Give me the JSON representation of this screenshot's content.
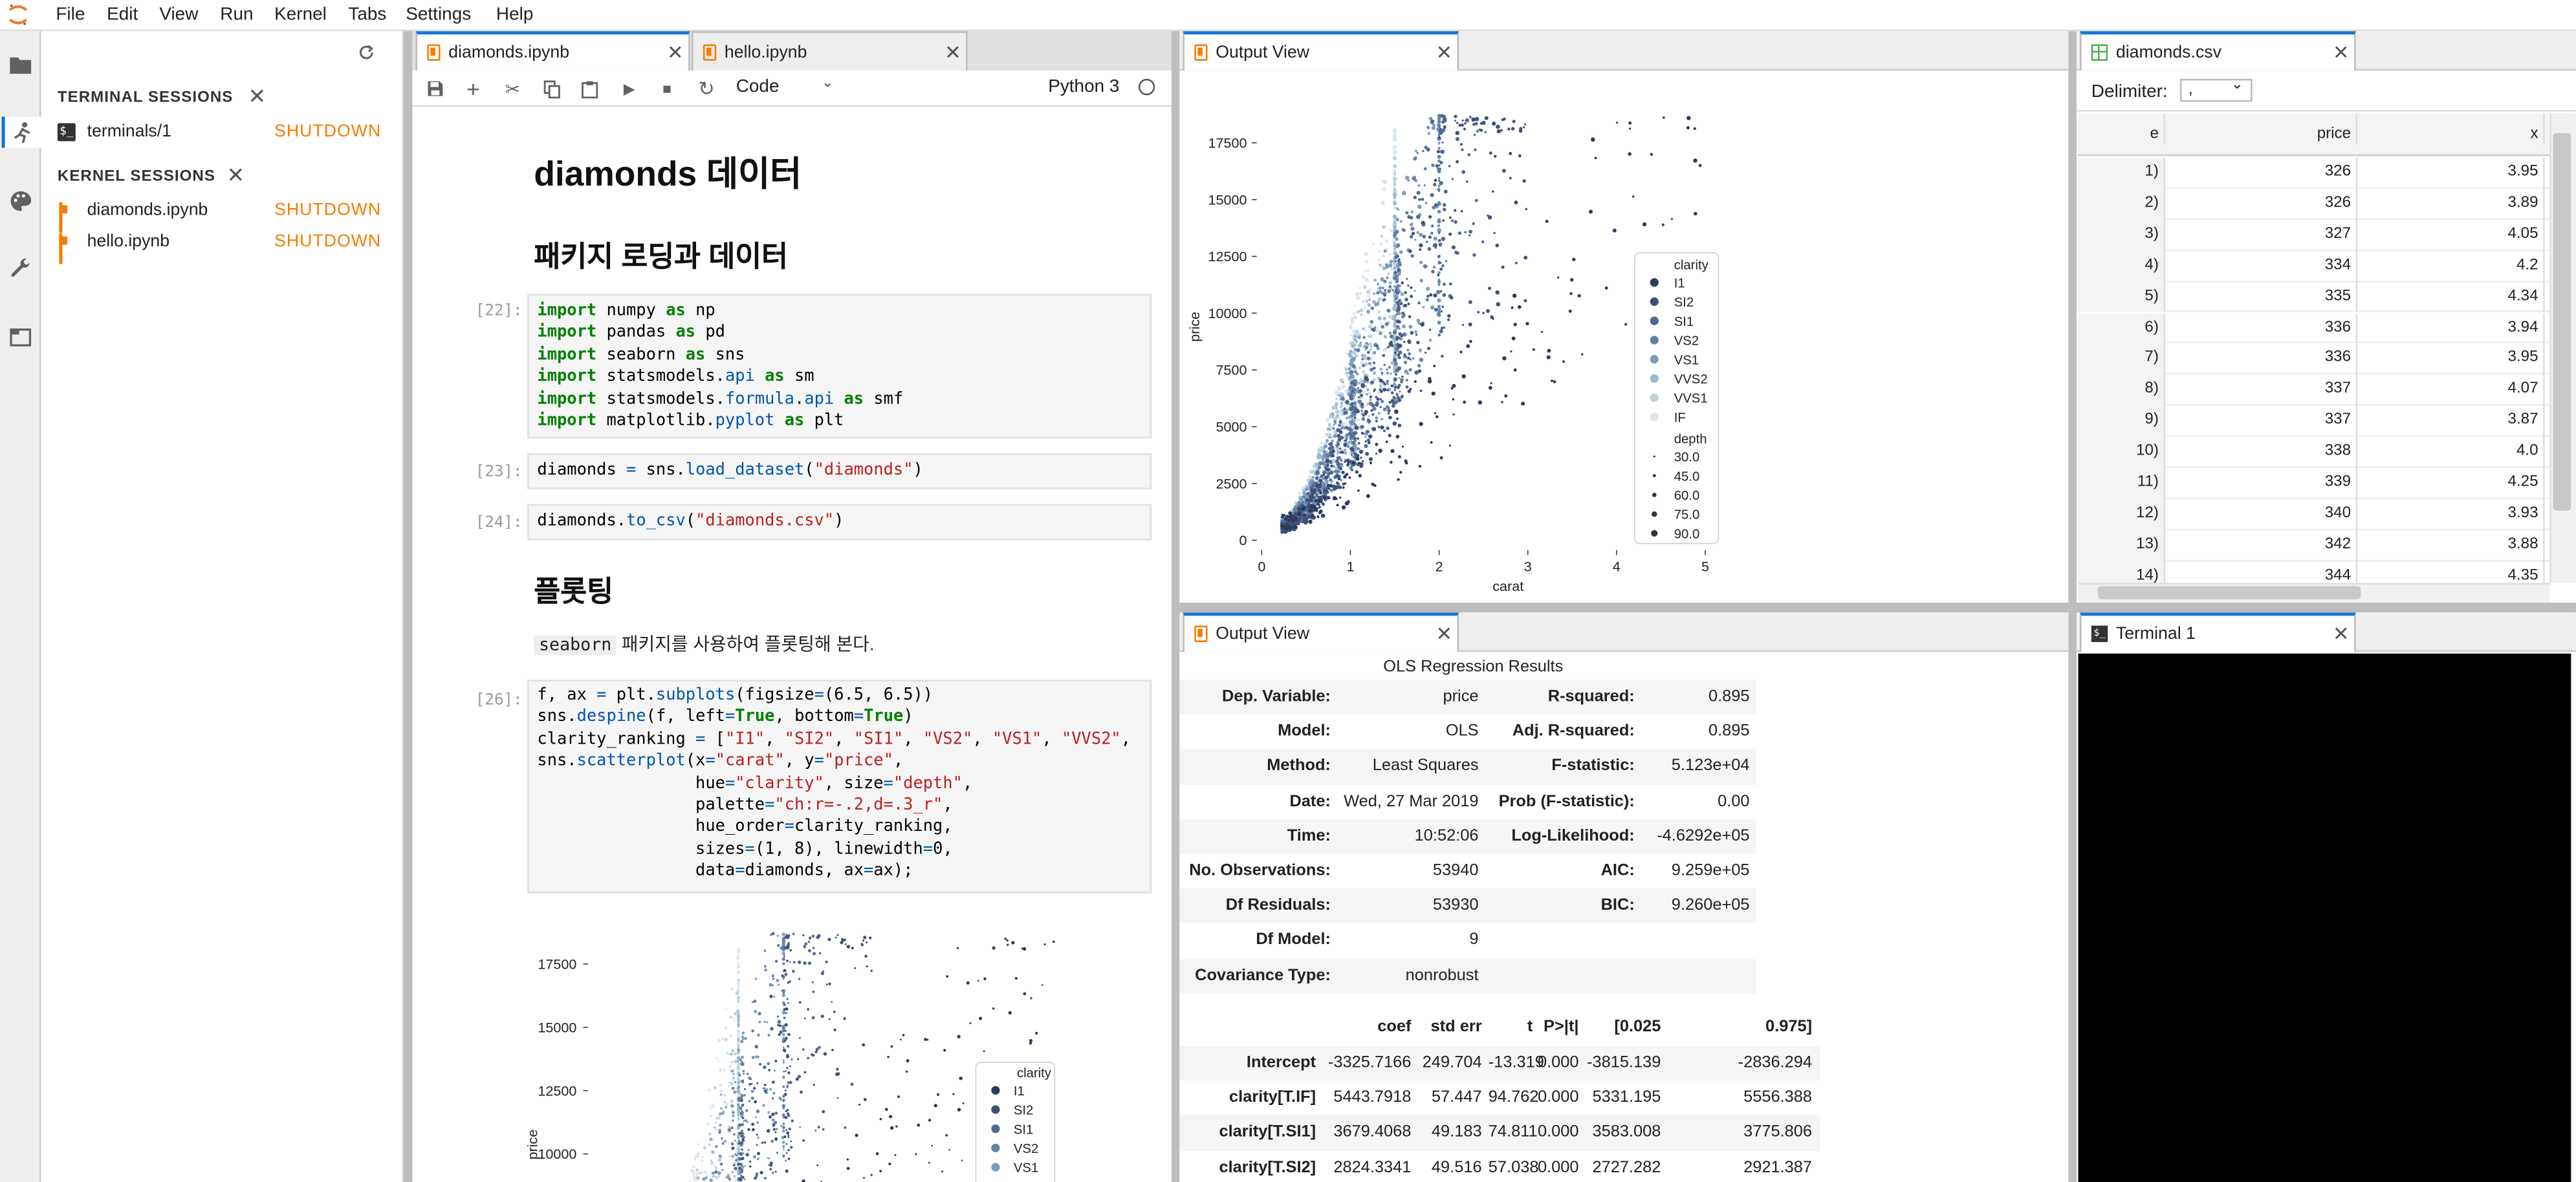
{
  "menu": {
    "items": [
      "File",
      "Edit",
      "View",
      "Run",
      "Kernel",
      "Tabs",
      "Settings",
      "Help"
    ]
  },
  "sidebar": {
    "terminal_title": "TERMINAL SESSIONS",
    "terminals": [
      {
        "name": "terminals/1",
        "action": "SHUTDOWN"
      }
    ],
    "kernel_title": "KERNEL SESSIONS",
    "kernels": [
      {
        "name": "diamonds.ipynb",
        "action": "SHUTDOWN"
      },
      {
        "name": "hello.ipynb",
        "action": "SHUTDOWN"
      }
    ]
  },
  "notebook": {
    "tabs": [
      "diamonds.ipynb",
      "hello.ipynb"
    ],
    "cell_type": "Code",
    "kernel": "Python 3",
    "h1": "diamonds 데이터",
    "h2a": "패키지 로딩과 데이터",
    "p22": "[22]:",
    "p23": "[23]:",
    "p24": "[24]:",
    "p26": "[26]:",
    "h2b": "플롯팅",
    "md_code": "seaborn",
    "md_text": "패키지를 사용하여 플롯팅해 본다."
  },
  "output_view": {
    "title": "Output View"
  },
  "ols": {
    "title": "OLS Regression Results",
    "rows": [
      [
        "Dep. Variable:",
        "price",
        "R-squared:",
        "0.895"
      ],
      [
        "Model:",
        "OLS",
        "Adj. R-squared:",
        "0.895"
      ],
      [
        "Method:",
        "Least Squares",
        "F-statistic:",
        "5.123e+04"
      ],
      [
        "Date:",
        "Wed, 27 Mar 2019",
        "Prob (F-statistic):",
        "0.00"
      ],
      [
        "Time:",
        "10:52:06",
        "Log-Likelihood:",
        "-4.6292e+05"
      ],
      [
        "No. Observations:",
        "53940",
        "AIC:",
        "9.259e+05"
      ],
      [
        "Df Residuals:",
        "53930",
        "BIC:",
        "9.260e+05"
      ],
      [
        "Df Model:",
        "9",
        "",
        ""
      ],
      [
        "Covariance Type:",
        "nonrobust",
        "",
        ""
      ]
    ],
    "coef_header": [
      "",
      "coef",
      "std err",
      "t",
      "P>|t|",
      "[0.025",
      "0.975]"
    ],
    "coef_rows": [
      [
        "Intercept",
        "-3325.7166",
        "249.704",
        "-13.319",
        "0.000",
        "-3815.139",
        "-2836.294"
      ],
      [
        "clarity[T.IF]",
        "5443.7918",
        "57.447",
        "94.762",
        "0.000",
        "5331.195",
        "5556.388"
      ],
      [
        "clarity[T.SI1]",
        "3679.4068",
        "49.183",
        "74.811",
        "0.000",
        "3583.008",
        "3775.806"
      ],
      [
        "clarity[T.SI2]",
        "2824.3341",
        "49.516",
        "57.038",
        "0.000",
        "2727.282",
        "2921.387"
      ]
    ]
  },
  "csv": {
    "tab": "diamonds.csv",
    "delimiter_label": "Delimiter:",
    "delimiter_value": ",",
    "headers": [
      "e",
      "price",
      "x"
    ],
    "rows": [
      [
        "1)",
        "326",
        "3.95"
      ],
      [
        "2)",
        "326",
        "3.89"
      ],
      [
        "3)",
        "327",
        "4.05"
      ],
      [
        "4)",
        "334",
        "4.2"
      ],
      [
        "5)",
        "335",
        "4.34"
      ],
      [
        "6)",
        "336",
        "3.94"
      ],
      [
        "7)",
        "336",
        "3.95"
      ],
      [
        "8)",
        "337",
        "4.07"
      ],
      [
        "9)",
        "337",
        "3.87"
      ],
      [
        "10)",
        "338",
        "4.0"
      ],
      [
        "11)",
        "339",
        "4.25"
      ],
      [
        "12)",
        "340",
        "3.93"
      ],
      [
        "13)",
        "342",
        "3.88"
      ],
      [
        "14)",
        "344",
        "4.35"
      ]
    ]
  },
  "terminal": {
    "tab": "Terminal 1"
  },
  "chart_data": [
    {
      "type": "scatter",
      "title": "",
      "xlabel": "carat",
      "ylabel": "price",
      "xlim": [
        0,
        5
      ],
      "ylim": [
        0,
        18800
      ],
      "xticks": [
        "0",
        "1",
        "2",
        "3",
        "4",
        "5"
      ],
      "yticks": [
        "0",
        "2500",
        "5000",
        "7500",
        "10000",
        "12500",
        "15000",
        "17500"
      ],
      "legend_position": "right",
      "legend": {
        "hue_title": "clarity",
        "hue": [
          "I1",
          "SI2",
          "SI1",
          "VS2",
          "VS1",
          "VVS2",
          "VVS1",
          "IF"
        ],
        "size_title": "depth",
        "size": [
          "30.0",
          "45.0",
          "60.0",
          "75.0",
          "90.0"
        ]
      },
      "colors": [
        "#2d3a5e",
        "#3e5079",
        "#4f6891",
        "#6381a8",
        "#7e9bbd",
        "#9cb6cf",
        "#bcd0df",
        "#dbe6ee"
      ],
      "series": [
        {
          "name": "I1",
          "x": [
            0.3,
            0.5,
            0.7,
            0.9,
            1.0,
            1.2,
            1.5,
            2.0,
            2.5,
            3.0,
            4.0,
            5.0
          ],
          "y": [
            900,
            1200,
            1700,
            2400,
            2800,
            3300,
            4500,
            6500,
            8000,
            10000,
            15500,
            18000
          ]
        },
        {
          "name": "SI2",
          "x": [
            0.3,
            0.5,
            0.7,
            0.9,
            1.0,
            1.2,
            1.5,
            2.0,
            2.5,
            3.0
          ],
          "y": [
            600,
            1300,
            2400,
            3900,
            4700,
            5800,
            8000,
            14500,
            17500,
            18000
          ]
        },
        {
          "name": "SI1",
          "x": [
            0.3,
            0.5,
            0.7,
            0.9,
            1.0,
            1.2,
            1.5,
            2.0,
            2.5
          ],
          "y": [
            650,
            1500,
            2800,
            4300,
            5300,
            6800,
            9500,
            16000,
            18000
          ]
        },
        {
          "name": "VS2",
          "x": [
            0.3,
            0.5,
            0.7,
            0.9,
            1.0,
            1.2,
            1.5,
            2.0
          ],
          "y": [
            700,
            1650,
            3000,
            4700,
            5700,
            7500,
            10500,
            16500
          ]
        },
        {
          "name": "VS1",
          "x": [
            0.3,
            0.5,
            0.7,
            0.9,
            1.0,
            1.2,
            1.5,
            2.0
          ],
          "y": [
            720,
            1700,
            3100,
            5000,
            6000,
            7900,
            11000,
            17000
          ]
        },
        {
          "name": "VVS2",
          "x": [
            0.3,
            0.5,
            0.7,
            0.9,
            1.0,
            1.2,
            1.5
          ],
          "y": [
            750,
            1800,
            3300,
            5300,
            6400,
            8500,
            12000
          ]
        },
        {
          "name": "VVS1",
          "x": [
            0.3,
            0.5,
            0.7,
            0.9,
            1.0,
            1.2,
            1.5
          ],
          "y": [
            780,
            1850,
            3450,
            5500,
            6700,
            9200,
            13000
          ]
        },
        {
          "name": "IF",
          "x": [
            0.3,
            0.5,
            0.7,
            0.9,
            1.0,
            1.2,
            1.5
          ],
          "y": [
            850,
            2000,
            3700,
            6000,
            7400,
            10000,
            14000
          ]
        }
      ]
    },
    {
      "type": "scatter",
      "title": "",
      "xlabel": "",
      "ylabel": "price",
      "ylim": [
        0,
        18800
      ],
      "yticks": [
        "10000",
        "12500",
        "15000",
        "17500"
      ],
      "legend_position": "right",
      "legend": {
        "hue_title": "clarity",
        "hue": [
          "I1",
          "SI2",
          "SI1",
          "VS2",
          "VS1"
        ]
      }
    }
  ]
}
